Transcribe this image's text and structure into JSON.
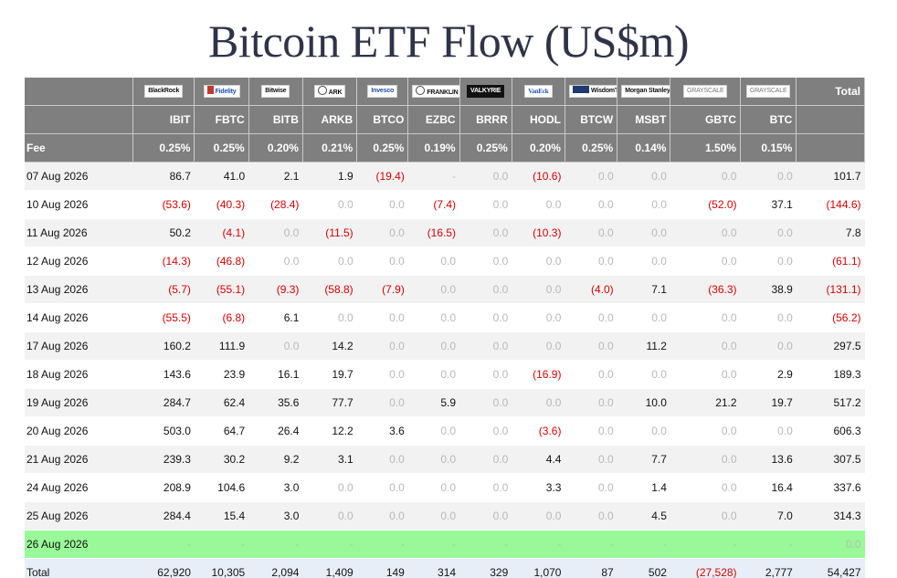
{
  "title": "Bitcoin ETF Flow (US$m)",
  "columns": [
    {
      "logo": "BlackRock",
      "logo_style": "plain",
      "ticker": "IBIT",
      "fee": "0.25%"
    },
    {
      "logo": "Fidelity",
      "logo_style": "fid",
      "ticker": "FBTC",
      "fee": "0.25%"
    },
    {
      "logo": "Bitwise",
      "logo_style": "plain",
      "ticker": "BITB",
      "fee": "0.20%"
    },
    {
      "logo": "ARK",
      "logo_style": "ark",
      "ticker": "ARKB",
      "fee": "0.21%"
    },
    {
      "logo": "Invesco",
      "logo_style": "inv",
      "ticker": "BTCO",
      "fee": "0.25%"
    },
    {
      "logo": "FRANKLIN TEMPLETON",
      "logo_style": "fra",
      "ticker": "EZBC",
      "fee": "0.19%"
    },
    {
      "logo": "VALKYRIE",
      "logo_style": "dark",
      "ticker": "BRRR",
      "fee": "0.25%"
    },
    {
      "logo": "VanEck",
      "logo_style": "van",
      "ticker": "HODL",
      "fee": "0.20%"
    },
    {
      "logo": "WisdomTree",
      "logo_style": "wis",
      "ticker": "BTCW",
      "fee": "0.25%"
    },
    {
      "logo": "Morgan Stanley",
      "logo_style": "plain",
      "ticker": "MSBT",
      "fee": "0.14%"
    },
    {
      "logo": "GRAYSCALE",
      "logo_style": "gry",
      "ticker": "GBTC",
      "fee": "1.50%"
    },
    {
      "logo": "GRAYSCALE",
      "logo_style": "gry",
      "ticker": "BTC",
      "fee": "0.15%"
    }
  ],
  "header": {
    "fee_label": "Fee",
    "total_label": "Total"
  },
  "rows": [
    {
      "date": "07 Aug 2026",
      "values": [
        "86.7",
        "41.0",
        "2.1",
        "1.9",
        "(19.4)",
        "-",
        "0.0",
        "(10.6)",
        "0.0",
        "0.0",
        "0.0",
        "0.0"
      ],
      "total": "101.7"
    },
    {
      "date": "10 Aug 2026",
      "values": [
        "(53.6)",
        "(40.3)",
        "(28.4)",
        "0.0",
        "0.0",
        "(7.4)",
        "0.0",
        "0.0",
        "0.0",
        "0.0",
        "(52.0)",
        "37.1"
      ],
      "total": "(144.6)"
    },
    {
      "date": "11 Aug 2026",
      "values": [
        "50.2",
        "(4.1)",
        "0.0",
        "(11.5)",
        "0.0",
        "(16.5)",
        "0.0",
        "(10.3)",
        "0.0",
        "0.0",
        "0.0",
        "0.0"
      ],
      "total": "7.8"
    },
    {
      "date": "12 Aug 2026",
      "values": [
        "(14.3)",
        "(46.8)",
        "0.0",
        "0.0",
        "0.0",
        "0.0",
        "0.0",
        "0.0",
        "0.0",
        "0.0",
        "0.0",
        "0.0"
      ],
      "total": "(61.1)"
    },
    {
      "date": "13 Aug 2026",
      "values": [
        "(5.7)",
        "(55.1)",
        "(9.3)",
        "(58.8)",
        "(7.9)",
        "0.0",
        "0.0",
        "0.0",
        "(4.0)",
        "7.1",
        "(36.3)",
        "38.9"
      ],
      "total": "(131.1)"
    },
    {
      "date": "14 Aug 2026",
      "values": [
        "(55.5)",
        "(6.8)",
        "6.1",
        "0.0",
        "0.0",
        "0.0",
        "0.0",
        "0.0",
        "0.0",
        "0.0",
        "0.0",
        "0.0"
      ],
      "total": "(56.2)"
    },
    {
      "date": "17 Aug 2026",
      "values": [
        "160.2",
        "111.9",
        "0.0",
        "14.2",
        "0.0",
        "0.0",
        "0.0",
        "0.0",
        "0.0",
        "11.2",
        "0.0",
        "0.0"
      ],
      "total": "297.5"
    },
    {
      "date": "18 Aug 2026",
      "values": [
        "143.6",
        "23.9",
        "16.1",
        "19.7",
        "0.0",
        "0.0",
        "0.0",
        "(16.9)",
        "0.0",
        "0.0",
        "0.0",
        "2.9"
      ],
      "total": "189.3"
    },
    {
      "date": "19 Aug 2026",
      "values": [
        "284.7",
        "62.4",
        "35.6",
        "77.7",
        "0.0",
        "5.9",
        "0.0",
        "0.0",
        "0.0",
        "10.0",
        "21.2",
        "19.7"
      ],
      "total": "517.2"
    },
    {
      "date": "20 Aug 2026",
      "values": [
        "503.0",
        "64.7",
        "26.4",
        "12.2",
        "3.6",
        "0.0",
        "0.0",
        "(3.6)",
        "0.0",
        "0.0",
        "0.0",
        "0.0"
      ],
      "total": "606.3"
    },
    {
      "date": "21 Aug 2026",
      "values": [
        "239.3",
        "30.2",
        "9.2",
        "3.1",
        "0.0",
        "0.0",
        "0.0",
        "4.4",
        "0.0",
        "7.7",
        "0.0",
        "13.6"
      ],
      "total": "307.5"
    },
    {
      "date": "24 Aug 2026",
      "values": [
        "208.9",
        "104.6",
        "3.0",
        "0.0",
        "0.0",
        "0.0",
        "0.0",
        "3.3",
        "0.0",
        "1.4",
        "0.0",
        "16.4"
      ],
      "total": "337.6"
    },
    {
      "date": "25 Aug 2026",
      "values": [
        "284.4",
        "15.4",
        "3.0",
        "0.0",
        "0.0",
        "0.0",
        "0.0",
        "0.0",
        "0.0",
        "4.5",
        "0.0",
        "7.0"
      ],
      "total": "314.3"
    },
    {
      "date": "26 Aug 2026",
      "values": [
        "-",
        "-",
        "-",
        "-",
        "-",
        "-",
        "-",
        "-",
        "-",
        "-",
        "-",
        "-"
      ],
      "total": "0.0",
      "highlight": true
    }
  ],
  "totals": {
    "label": "Total",
    "values": [
      "62,920",
      "10,305",
      "2,094",
      "1,409",
      "149",
      "314",
      "329",
      "1,070",
      "87",
      "502",
      "(27,528)",
      "2,777"
    ],
    "total": "54,427"
  },
  "colors": {
    "header_bg": "#7f7f7f",
    "negative": "#d60000",
    "zero": "#b8b8b8",
    "highlight_row": "#99f999",
    "total_row_bg": "#e8eef7",
    "title": "#2f3347"
  }
}
